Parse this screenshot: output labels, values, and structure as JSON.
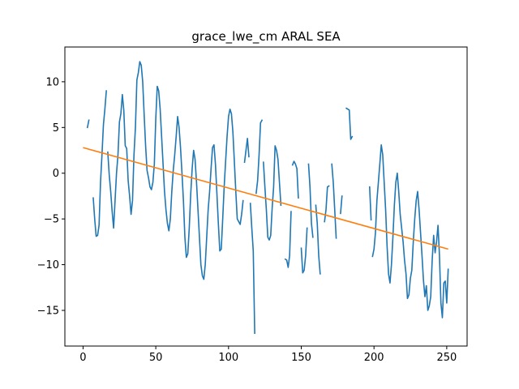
{
  "chart_data": {
    "type": "line",
    "title": "grace_lwe_cm ARAL SEA",
    "xlabel": "",
    "ylabel": "",
    "xlim": [
      -12.5,
      264
    ],
    "ylim": [
      -18.9,
      13.8
    ],
    "xticks": [
      0,
      50,
      100,
      150,
      200,
      250
    ],
    "yticks": [
      -15,
      -10,
      -5,
      0,
      5,
      10
    ],
    "grid": false,
    "legend": "none",
    "colors": {
      "series": "#1f77b4",
      "trend": "#ff7f0e"
    },
    "series": [
      {
        "segments": [
          [
            [
              3,
              5.0
            ],
            [
              4,
              5.8
            ]
          ],
          [
            [
              7,
              -2.7
            ],
            [
              8,
              -5.0
            ],
            [
              9,
              -6.9
            ],
            [
              10,
              -6.8
            ],
            [
              11,
              -5.7
            ],
            [
              12,
              -1.0
            ],
            [
              13,
              2.0
            ],
            [
              14,
              5.3
            ],
            [
              15,
              7.0
            ],
            [
              16,
              9.0
            ]
          ],
          [
            [
              17,
              2.3
            ],
            [
              18,
              -0.2
            ],
            [
              19,
              -2.0
            ],
            [
              20,
              -4.2
            ],
            [
              21,
              -6.0
            ],
            [
              22,
              -3.0
            ],
            [
              23,
              0.0
            ],
            [
              24,
              2.0
            ],
            [
              25,
              5.6
            ],
            [
              26,
              6.5
            ],
            [
              27,
              8.6
            ],
            [
              28,
              6.9
            ],
            [
              29,
              3.0
            ],
            [
              30,
              2.7
            ],
            [
              31,
              -0.8
            ],
            [
              32,
              -2.5
            ],
            [
              33,
              -4.5
            ],
            [
              34,
              -3.0
            ],
            [
              35,
              2.0
            ],
            [
              36,
              5.0
            ],
            [
              37,
              10.2
            ],
            [
              38,
              11.0
            ],
            [
              39,
              12.2
            ],
            [
              40,
              11.8
            ],
            [
              41,
              10.0
            ],
            [
              42,
              6.4
            ],
            [
              43,
              3.0
            ],
            [
              44,
              0.3
            ],
            [
              45,
              -0.5
            ],
            [
              46,
              -1.5
            ],
            [
              47,
              -1.8
            ],
            [
              48,
              -1.0
            ],
            [
              49,
              1.0
            ],
            [
              50,
              6.0
            ],
            [
              51,
              9.5
            ],
            [
              52,
              9.0
            ],
            [
              53,
              7.0
            ],
            [
              54,
              4.0
            ],
            [
              55,
              1.0
            ],
            [
              56,
              -2.0
            ],
            [
              57,
              -4.0
            ],
            [
              58,
              -5.5
            ],
            [
              59,
              -6.3
            ],
            [
              60,
              -5.0
            ],
            [
              61,
              -2.0
            ],
            [
              62,
              0.3
            ],
            [
              63,
              2.0
            ],
            [
              64,
              4.0
            ],
            [
              65,
              6.2
            ],
            [
              66,
              5.0
            ],
            [
              67,
              2.8
            ],
            [
              68,
              0.0
            ],
            [
              69,
              -3.0
            ],
            [
              70,
              -7.0
            ],
            [
              71,
              -9.2
            ],
            [
              72,
              -8.8
            ],
            [
              73,
              -6.0
            ],
            [
              74,
              -2.3
            ],
            [
              75,
              0.5
            ],
            [
              76,
              2.5
            ],
            [
              77,
              1.5
            ],
            [
              78,
              -1.0
            ],
            [
              79,
              -4.0
            ],
            [
              80,
              -7.0
            ],
            [
              81,
              -10.0
            ],
            [
              82,
              -11.2
            ],
            [
              83,
              -11.6
            ],
            [
              84,
              -10.0
            ],
            [
              85,
              -7.0
            ],
            [
              86,
              -4.0
            ],
            [
              87,
              -2.0
            ],
            [
              88,
              0.5
            ],
            [
              89,
              2.8
            ],
            [
              90,
              3.1
            ],
            [
              91,
              1.0
            ],
            [
              92,
              -2.2
            ],
            [
              93,
              -5.5
            ],
            [
              94,
              -8.5
            ],
            [
              95,
              -8.3
            ],
            [
              96,
              -5.0
            ],
            [
              97,
              -1.5
            ],
            [
              98,
              1.3
            ],
            [
              99,
              4.0
            ],
            [
              100,
              6.2
            ],
            [
              101,
              7.0
            ],
            [
              102,
              6.5
            ],
            [
              103,
              4.5
            ],
            [
              104,
              1.3
            ],
            [
              105,
              -2.0
            ],
            [
              106,
              -5.0
            ],
            [
              107,
              -5.3
            ],
            [
              108,
              -5.6
            ],
            [
              109,
              -4.5
            ],
            [
              110,
              -3.0
            ]
          ],
          [
            [
              111,
              1.2
            ],
            [
              112,
              2.5
            ],
            [
              113,
              3.8
            ],
            [
              114,
              1.8
            ]
          ],
          [
            [
              115,
              -3.3
            ],
            [
              116,
              -6.0
            ],
            [
              117,
              -8.5
            ],
            [
              118,
              -17.5
            ]
          ],
          [
            [
              119,
              -2.2
            ],
            [
              120,
              -0.8
            ],
            [
              121,
              2.0
            ],
            [
              122,
              5.5
            ],
            [
              123,
              5.8
            ]
          ],
          [
            [
              124,
              1.2
            ],
            [
              125,
              -1.5
            ],
            [
              126,
              -4.0
            ],
            [
              127,
              -7.0
            ],
            [
              128,
              -7.3
            ],
            [
              129,
              -6.8
            ],
            [
              130,
              -3.8
            ],
            [
              131,
              -1.5
            ],
            [
              132,
              3.0
            ],
            [
              133,
              2.5
            ],
            [
              134,
              1.5
            ],
            [
              135,
              -1.0
            ],
            [
              136,
              -3.5
            ]
          ],
          [
            [
              139,
              -9.4
            ],
            [
              140,
              -9.5
            ],
            [
              141,
              -10.3
            ],
            [
              142,
              -9.0
            ],
            [
              143,
              -4.2
            ]
          ],
          [
            [
              144,
              0.9
            ],
            [
              145,
              1.3
            ],
            [
              146,
              1.0
            ],
            [
              147,
              0.5
            ],
            [
              148,
              -2.7
            ]
          ],
          [
            [
              150,
              -8.2
            ],
            [
              151,
              -10.9
            ],
            [
              152,
              -10.6
            ],
            [
              153,
              -9.0
            ],
            [
              154,
              -6.0
            ]
          ],
          [
            [
              155,
              1.0
            ],
            [
              156,
              -1.5
            ],
            [
              157,
              -5.5
            ],
            [
              158,
              -7.0
            ]
          ],
          [
            [
              160,
              -3.5
            ],
            [
              161,
              -5.5
            ],
            [
              162,
              -9.0
            ],
            [
              163,
              -11.0
            ]
          ],
          [
            [
              166,
              -5.3
            ],
            [
              167,
              -4.0
            ],
            [
              168,
              -1.5
            ],
            [
              169,
              -1.4
            ]
          ],
          [
            [
              171,
              1.0
            ],
            [
              172,
              -1.0
            ],
            [
              173,
              -4.0
            ],
            [
              174,
              -7.1
            ]
          ],
          [
            [
              177,
              -4.4
            ],
            [
              178,
              -2.5
            ]
          ],
          [
            [
              181,
              7.1
            ],
            [
              182,
              7.0
            ],
            [
              183,
              6.9
            ],
            [
              184,
              3.7
            ],
            [
              185,
              4.0
            ]
          ],
          [
            [
              197,
              -1.5
            ],
            [
              198,
              -5.1
            ]
          ],
          [
            [
              199,
              -9.1
            ],
            [
              200,
              -8.3
            ],
            [
              201,
              -6.5
            ],
            [
              202,
              -3.0
            ],
            [
              203,
              -1.0
            ],
            [
              204,
              1.0
            ],
            [
              205,
              3.1
            ],
            [
              206,
              2.0
            ],
            [
              207,
              -1.0
            ],
            [
              208,
              -4.0
            ],
            [
              209,
              -8.0
            ],
            [
              210,
              -11.0
            ],
            [
              211,
              -12.0
            ],
            [
              212,
              -10.0
            ],
            [
              213,
              -7.0
            ],
            [
              214,
              -3.5
            ],
            [
              215,
              -1.0
            ],
            [
              216,
              0.0
            ],
            [
              217,
              -2.0
            ],
            [
              218,
              -4.5
            ],
            [
              219,
              -6.0
            ],
            [
              220,
              -7.5
            ],
            [
              221,
              -9.5
            ],
            [
              222,
              -11.0
            ],
            [
              223,
              -13.7
            ],
            [
              224,
              -13.3
            ],
            [
              225,
              -11.5
            ],
            [
              226,
              -10.6
            ],
            [
              227,
              -7.5
            ],
            [
              228,
              -5.0
            ],
            [
              229,
              -3.0
            ],
            [
              230,
              -2.0
            ],
            [
              231,
              -4.0
            ],
            [
              232,
              -6.5
            ],
            [
              233,
              -9.0
            ],
            [
              234,
              -11.7
            ],
            [
              235,
              -13.5
            ],
            [
              236,
              -12.3
            ],
            [
              237,
              -15.0
            ],
            [
              238,
              -14.5
            ],
            [
              239,
              -13.5
            ],
            [
              240,
              -9.5
            ],
            [
              241,
              -6.8
            ],
            [
              242,
              -8.7
            ],
            [
              243,
              -7.5
            ],
            [
              244,
              -5.7
            ],
            [
              245,
              -9.0
            ],
            [
              246,
              -14.2
            ],
            [
              247,
              -15.8
            ],
            [
              248,
              -12.0
            ],
            [
              249,
              -11.8
            ],
            [
              250,
              -14.2
            ],
            [
              251,
              -10.5
            ]
          ]
        ]
      },
      {
        "points": [
          [
            0,
            2.8
          ],
          [
            251,
            -8.3
          ]
        ]
      }
    ]
  }
}
